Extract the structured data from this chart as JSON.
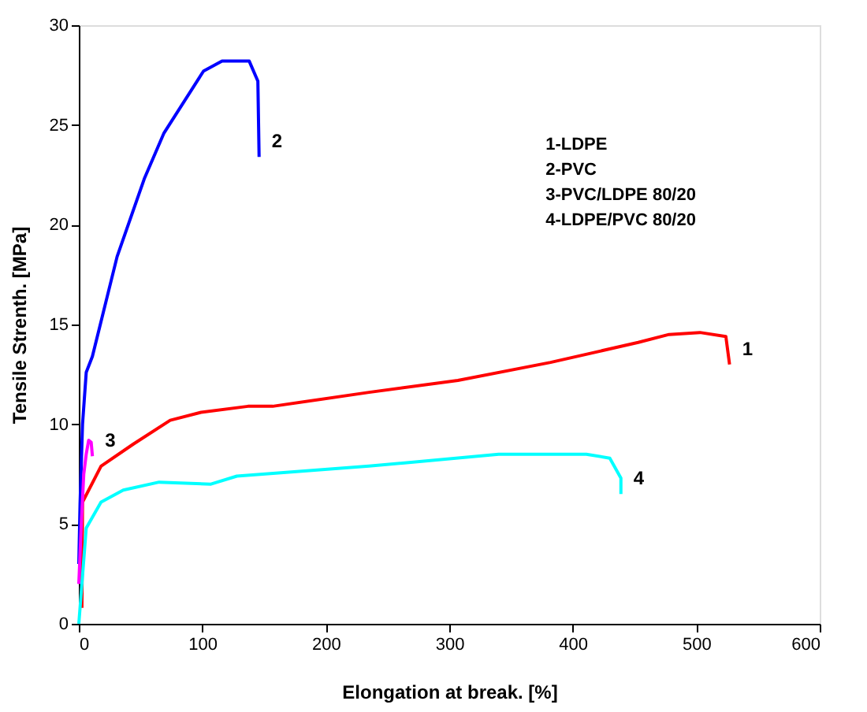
{
  "chart_data": {
    "type": "line",
    "xlabel": "Elongation at break. [%]",
    "ylabel": "Tensile Strenth. [MPa]",
    "xlim": [
      0,
      600
    ],
    "xticks": [
      0,
      100,
      200,
      300,
      400,
      500,
      600
    ],
    "ylim": [
      0,
      30
    ],
    "yticks": [
      0,
      5,
      10,
      15,
      20,
      25,
      30
    ],
    "grid": false,
    "marker": "none",
    "line_style": "solid",
    "annotations": [
      "1-LDPE",
      "2-PVC",
      "3-PVC/LDPE 80/20",
      "4-LDPE/PVC 80/20"
    ],
    "series": [
      {
        "name": "1",
        "color": "#ff0000",
        "x": [
          2.5,
          3,
          18,
          44,
          74,
          99,
          137,
          157,
          235,
          307,
          382,
          453,
          478,
          503,
          524,
          527
        ],
        "values": [
          0.8,
          6.1,
          7.9,
          9.0,
          10.2,
          10.6,
          10.9,
          10.9,
          11.6,
          12.2,
          13.1,
          14.1,
          14.5,
          14.6,
          14.4,
          13.0
        ]
      },
      {
        "name": "2",
        "color": "#0000ff",
        "x": [
          0,
          1,
          3,
          6,
          11,
          31,
          53,
          69,
          101,
          116,
          138,
          145,
          146
        ],
        "values": [
          3,
          6,
          10,
          12.6,
          13.4,
          18.4,
          22.3,
          24.6,
          27.7,
          28.2,
          28.2,
          27.2,
          23.4
        ]
      },
      {
        "name": "3",
        "color": "#ff00ff",
        "x": [
          0,
          2,
          4,
          6,
          8,
          10,
          11
        ],
        "values": [
          2,
          5,
          7.5,
          8.5,
          9.2,
          9.1,
          8.4
        ]
      },
      {
        "name": "4",
        "color": "#00ffff",
        "x": [
          0,
          6,
          18,
          36,
          65,
          107,
          128,
          235,
          340,
          411,
          430,
          439,
          439
        ],
        "values": [
          0,
          4.8,
          6.1,
          6.7,
          7.1,
          7.0,
          7.4,
          7.9,
          8.5,
          8.5,
          8.3,
          7.3,
          6.5
        ]
      }
    ]
  }
}
